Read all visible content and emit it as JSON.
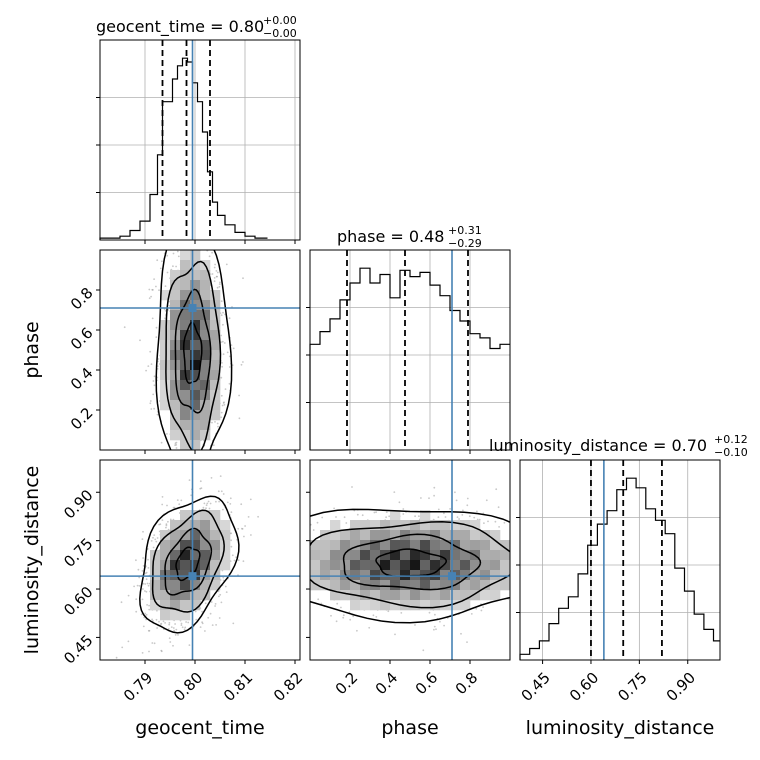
{
  "colors": {
    "truth": "#4682b4",
    "ink": "#000000",
    "grid": "#b0b0b0",
    "scatter": "#9a9a9a"
  },
  "chart_data": {
    "type": "corner",
    "parameters": [
      {
        "name": "geocent_time",
        "label": "geocent_time",
        "truth": 0.7995,
        "range": [
          0.781,
          0.821
        ],
        "ticks": [
          0.79,
          0.8,
          0.81,
          0.82
        ],
        "tick_labels": [
          "0.79",
          "0.80",
          "0.81",
          "0.82"
        ],
        "title": {
          "main": "geocent_time = 0.80",
          "plus": "+0.00",
          "minus": "−0.00"
        },
        "quantiles": [
          0.7935,
          0.7983,
          0.803
        ],
        "hist": {
          "edges": [
            0.781,
            0.783,
            0.785,
            0.787,
            0.789,
            0.791,
            0.7925,
            0.7935,
            0.7955,
            0.7965,
            0.7975,
            0.7985,
            0.7995,
            0.8005,
            0.8015,
            0.8025,
            0.8035,
            0.8045,
            0.806,
            0.808,
            0.81,
            0.812,
            0.8145
          ],
          "counts": [
            0.01,
            0.01,
            0.02,
            0.05,
            0.1,
            0.24,
            0.45,
            0.73,
            0.85,
            0.92,
            0.96,
            0.94,
            0.83,
            0.73,
            0.57,
            0.36,
            0.2,
            0.13,
            0.08,
            0.04,
            0.02,
            0.01
          ]
        }
      },
      {
        "name": "phase",
        "label": "phase",
        "truth": 0.71,
        "range": [
          0.0,
          1.0
        ],
        "ticks": [
          0.2,
          0.4,
          0.6,
          0.8
        ],
        "tick_labels": [
          "0.2",
          "0.4",
          "0.6",
          "0.8"
        ],
        "title": {
          "main": "phase = 0.48",
          "plus": "+0.31",
          "minus": "−0.29"
        },
        "quantiles": [
          0.185,
          0.475,
          0.79
        ],
        "hist": {
          "edges": [
            0.0,
            0.05,
            0.1,
            0.15,
            0.2,
            0.25,
            0.3,
            0.35,
            0.4,
            0.45,
            0.5,
            0.55,
            0.6,
            0.65,
            0.7,
            0.75,
            0.8,
            0.85,
            0.9,
            0.95,
            1.0
          ],
          "counts": [
            0.5,
            0.56,
            0.62,
            0.71,
            0.79,
            0.86,
            0.79,
            0.83,
            0.72,
            0.85,
            0.82,
            0.84,
            0.78,
            0.73,
            0.66,
            0.61,
            0.55,
            0.53,
            0.48,
            0.5
          ]
        }
      },
      {
        "name": "luminosity_distance",
        "label": "luminosity_distance",
        "truth": 0.64,
        "range": [
          0.38,
          1.0
        ],
        "ticks": [
          0.45,
          0.6,
          0.75,
          0.9
        ],
        "tick_labels": [
          "0.45",
          "0.60",
          "0.75",
          "0.90"
        ],
        "title": {
          "main": "luminosity_distance = 0.70",
          "plus": "+0.12",
          "minus": "−0.10"
        },
        "quantiles": [
          0.6,
          0.7,
          0.82
        ],
        "hist": {
          "edges": [
            0.38,
            0.41,
            0.44,
            0.47,
            0.5,
            0.53,
            0.56,
            0.59,
            0.62,
            0.65,
            0.68,
            0.71,
            0.74,
            0.77,
            0.8,
            0.83,
            0.86,
            0.89,
            0.92,
            0.95,
            0.98,
            1.0
          ],
          "counts": [
            0.03,
            0.06,
            0.1,
            0.19,
            0.27,
            0.33,
            0.45,
            0.6,
            0.71,
            0.78,
            0.89,
            0.95,
            0.9,
            0.79,
            0.73,
            0.66,
            0.48,
            0.36,
            0.24,
            0.16,
            0.1
          ]
        }
      }
    ],
    "panels_2d": [
      {
        "x": "geocent_time",
        "y": "phase",
        "center": [
          0.7995,
          0.48
        ],
        "spread": [
          0.0032,
          0.27
        ],
        "rho": 0.0
      },
      {
        "x": "geocent_time",
        "y": "luminosity_distance",
        "center": [
          0.7985,
          0.68
        ],
        "spread": [
          0.0042,
          0.09
        ],
        "rho": 0.35
      },
      {
        "x": "phase",
        "y": "luminosity_distance",
        "center": [
          0.5,
          0.68
        ],
        "spread": [
          0.31,
          0.075
        ],
        "rho": 0.0
      }
    ]
  }
}
